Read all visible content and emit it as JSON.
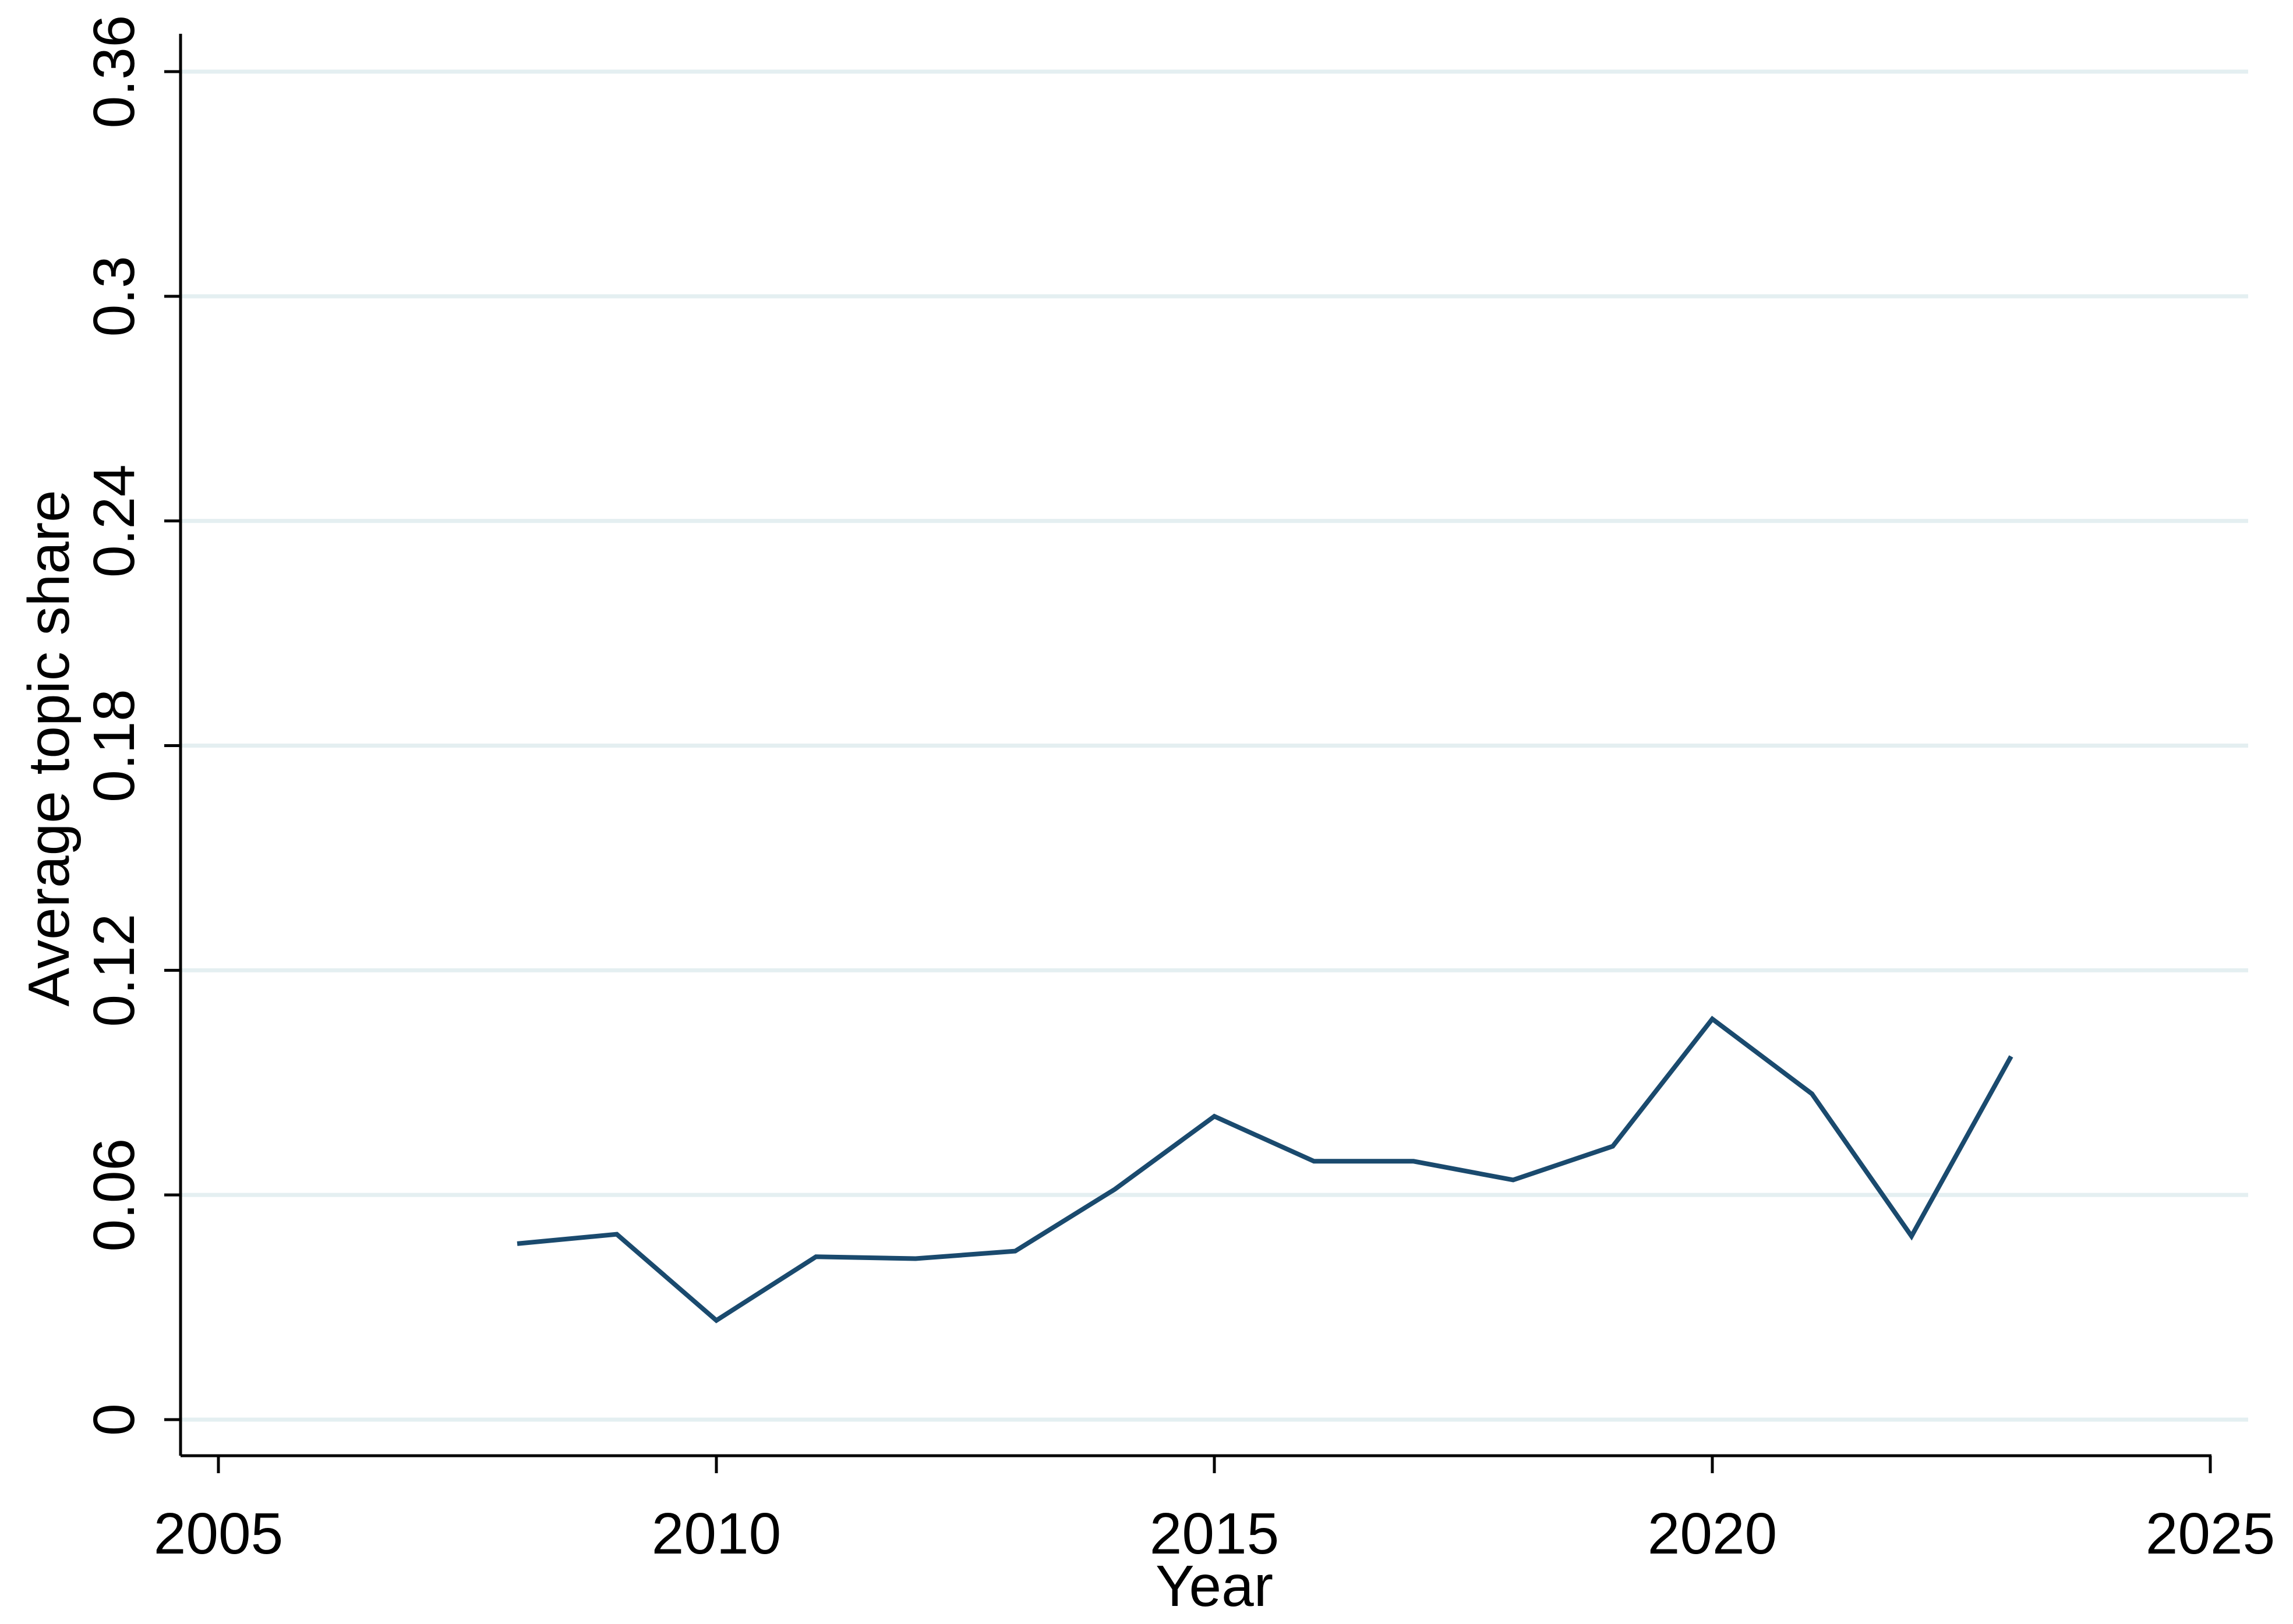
{
  "chart_data": {
    "type": "line",
    "title": "",
    "xlabel": "Year",
    "ylabel": "Average topic share",
    "xlim": [
      2005,
      2025
    ],
    "ylim": [
      0,
      0.36
    ],
    "x_ticks": [
      2005,
      2010,
      2015,
      2020,
      2025
    ],
    "x_tick_labels": [
      "2005",
      "2010",
      "2015",
      "2020",
      "2025"
    ],
    "y_ticks": [
      0,
      0.06,
      0.12,
      0.18,
      0.24,
      0.3,
      0.36
    ],
    "y_tick_labels": [
      "0",
      "0.06",
      "0.12",
      "0.18",
      "0.24",
      "0.3",
      "0.36"
    ],
    "grid": true,
    "legend": "none",
    "series": [
      {
        "x": [
          2008,
          2009,
          2010,
          2011,
          2012,
          2013,
          2014,
          2015,
          2016,
          2017,
          2018,
          2019,
          2020,
          2021,
          2022,
          2023
        ],
        "values": [
          0.047,
          0.0495,
          0.0265,
          0.0435,
          0.043,
          0.045,
          0.0615,
          0.081,
          0.069,
          0.069,
          0.064,
          0.073,
          0.107,
          0.087,
          0.049,
          0.097
        ],
        "color": "#1a4a6e"
      }
    ],
    "colors": {
      "grid": "#e4eff1",
      "axis": "#000000",
      "line": "#1a4a6e"
    }
  }
}
